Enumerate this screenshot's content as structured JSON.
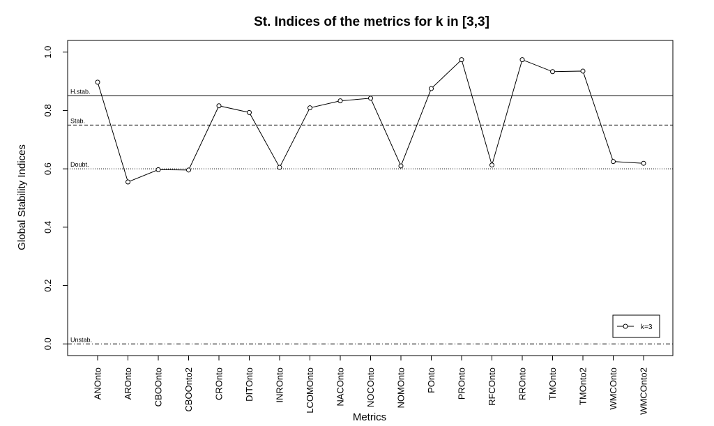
{
  "chart_data": {
    "type": "line",
    "title": "St. Indices of the metrics for k in [3,3]",
    "xlabel": "Metrics",
    "ylabel": "Global Stability Indices",
    "ylim": [
      -0.04,
      1.04
    ],
    "yticks": [
      "0.0",
      "0.2",
      "0.4",
      "0.6",
      "0.8",
      "1.0"
    ],
    "ytick_values": [
      0,
      0.2,
      0.4,
      0.6,
      0.8,
      1.0
    ],
    "categories": [
      "ANOnto",
      "AROnto",
      "CBOOnto",
      "CBOOnto2",
      "CROnto",
      "DITOnto",
      "INROnto",
      "LCOMOnto",
      "NACOnto",
      "NOCOnto",
      "NOMOnto",
      "POnto",
      "PROnto",
      "RFCOnto",
      "RROnto",
      "TMOnto",
      "TMOnto2",
      "WMCOnto",
      "WMCOnto2"
    ],
    "series": [
      {
        "name": "k=3",
        "values": [
          0.897,
          0.555,
          0.597,
          0.596,
          0.816,
          0.793,
          0.605,
          0.809,
          0.833,
          0.842,
          0.61,
          0.875,
          0.974,
          0.613,
          0.974,
          0.933,
          0.935,
          0.625,
          0.619
        ]
      }
    ],
    "reference_lines": [
      {
        "label": "H.stab.",
        "value": 0.85,
        "style": "solid"
      },
      {
        "label": "Stab.",
        "value": 0.75,
        "style": "dashed"
      },
      {
        "label": "Doubt.",
        "value": 0.6,
        "style": "dotted"
      },
      {
        "label": "Unstab.",
        "value": 0.0,
        "style": "dashdot"
      }
    ],
    "legend": {
      "position": "bottom-right",
      "entries": [
        "k=3"
      ]
    },
    "grid": false
  }
}
